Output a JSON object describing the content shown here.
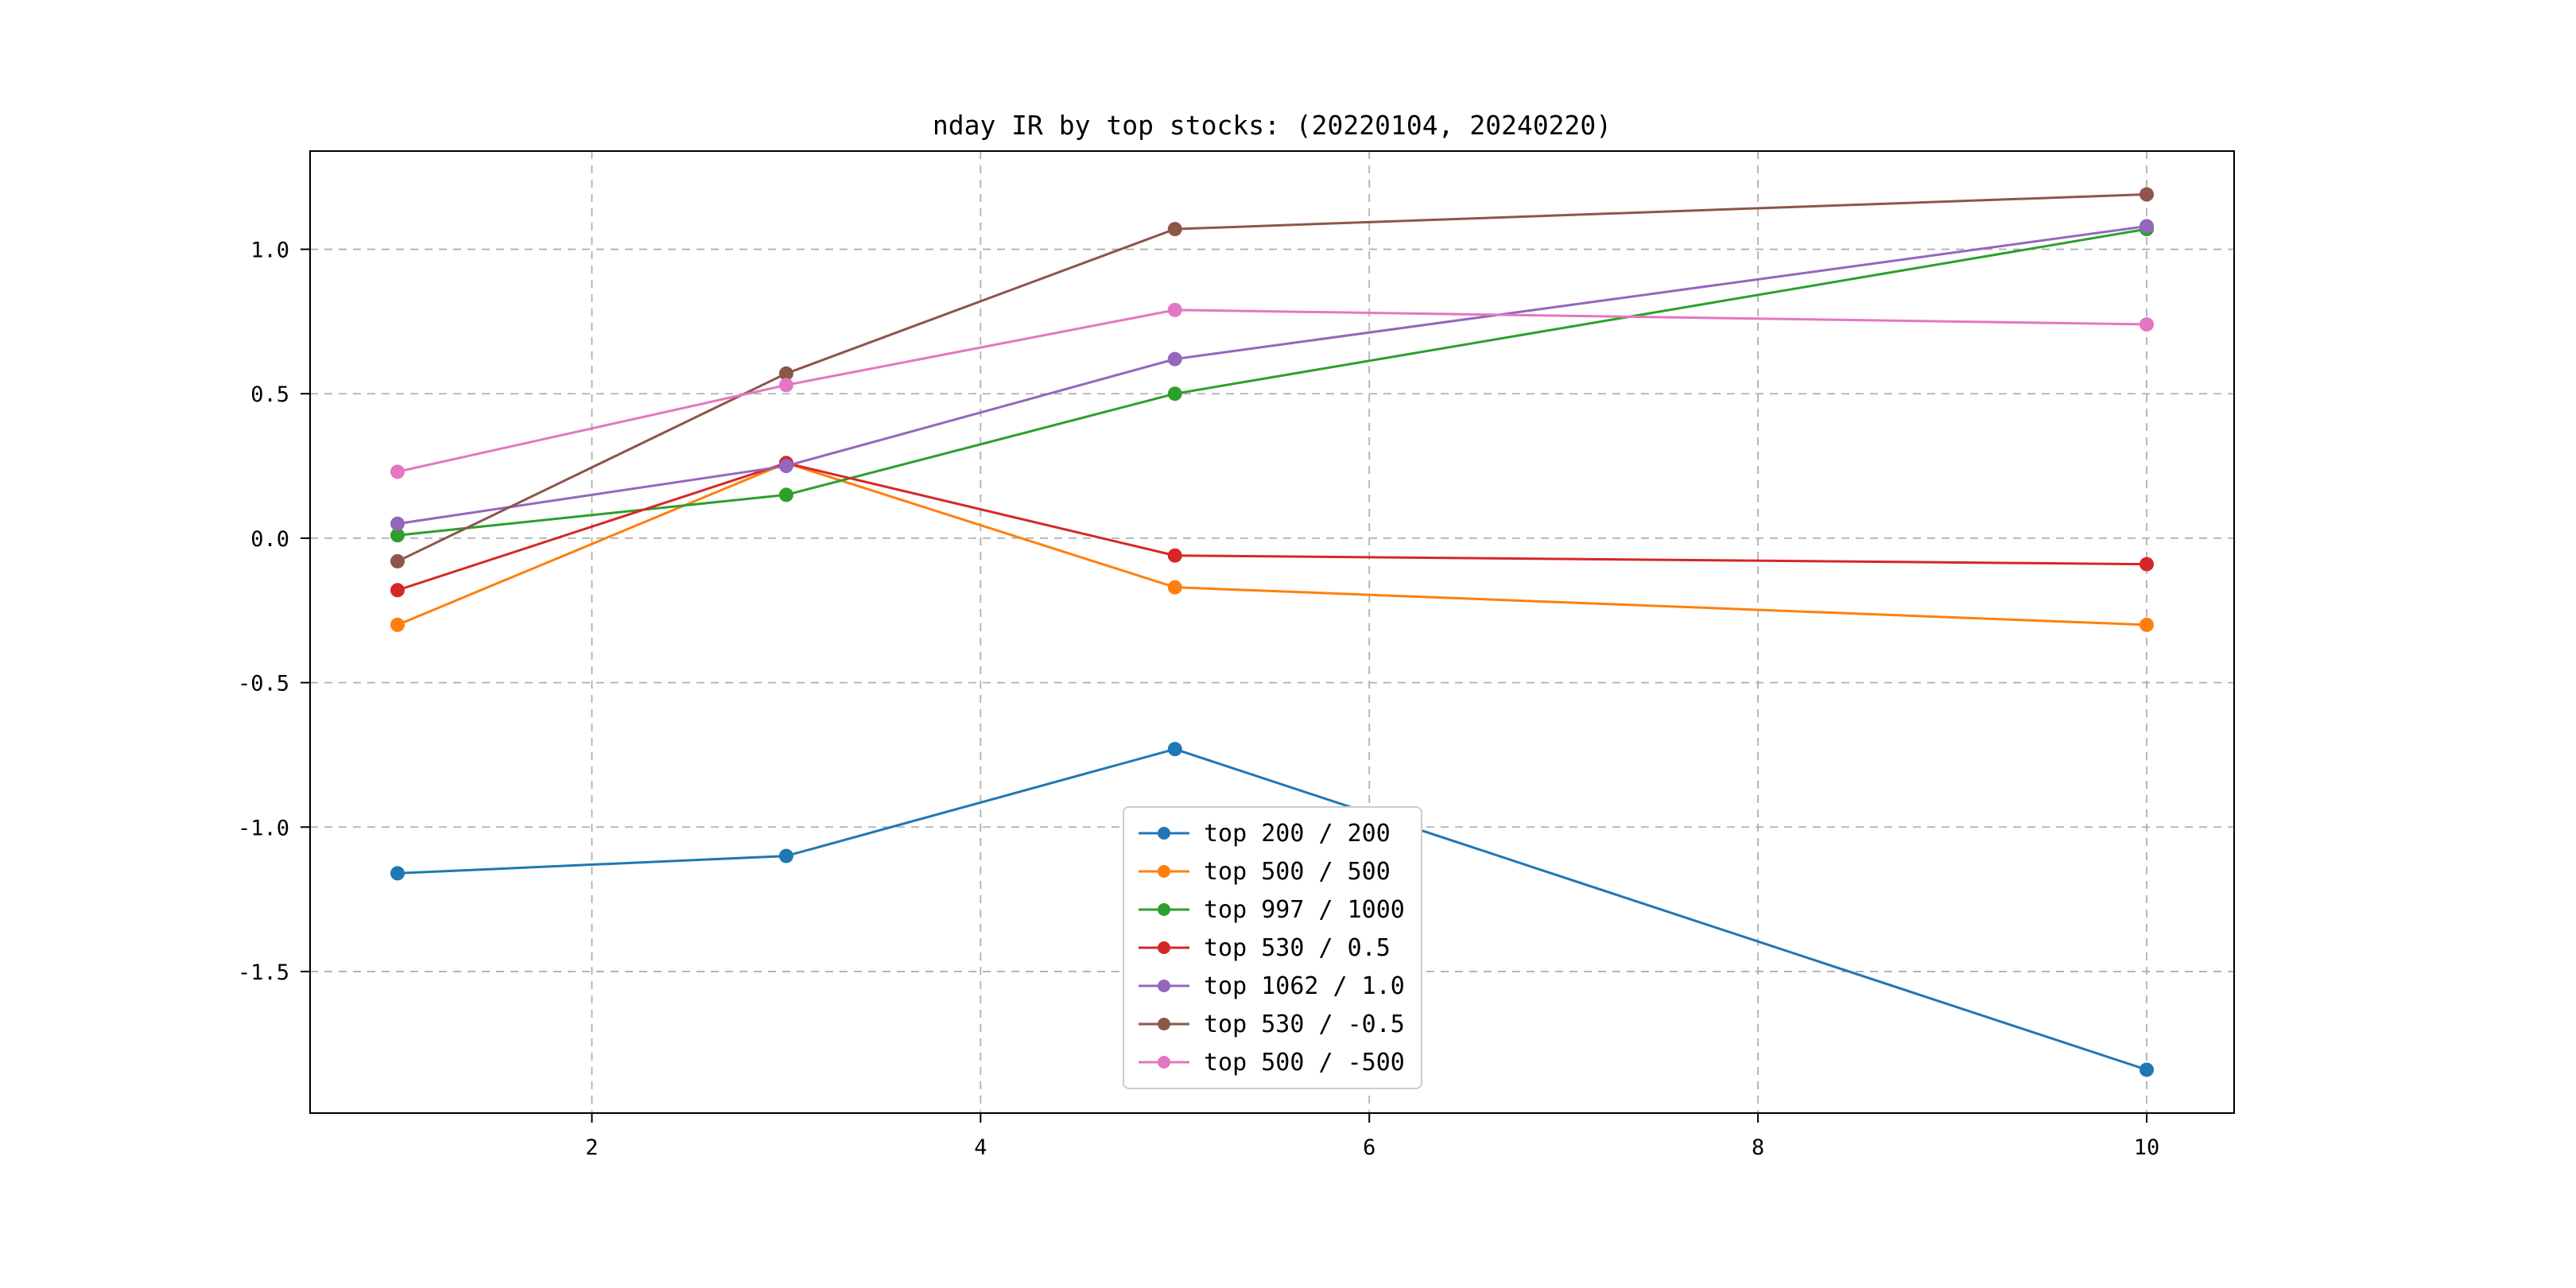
{
  "figure": {
    "background": "#ffffff",
    "axes_edge_color": "#000000",
    "grid_color": "#b0b0b0"
  },
  "chart_data": {
    "type": "line",
    "title": "nday IR by top stocks: (20220104, 20240220)",
    "xlabel": "",
    "ylabel": "",
    "x": [
      1,
      3,
      5,
      10
    ],
    "series": [
      {
        "name": "top 200 / 200",
        "color": "#1f77b4",
        "values": [
          -1.16,
          -1.1,
          -0.73,
          -1.84
        ]
      },
      {
        "name": "top 500 / 500",
        "color": "#ff7f0e",
        "values": [
          -0.3,
          0.26,
          -0.17,
          -0.3
        ]
      },
      {
        "name": "top 997 / 1000",
        "color": "#2ca02c",
        "values": [
          0.01,
          0.15,
          0.5,
          1.07
        ]
      },
      {
        "name": "top 530 / 0.5",
        "color": "#d62728",
        "values": [
          -0.18,
          0.26,
          -0.06,
          -0.09
        ]
      },
      {
        "name": "top 1062 / 1.0",
        "color": "#9467bd",
        "values": [
          0.05,
          0.25,
          0.62,
          1.08
        ]
      },
      {
        "name": "top 530 / -0.5",
        "color": "#8c564b",
        "values": [
          -0.08,
          0.57,
          1.07,
          1.19
        ]
      },
      {
        "name": "top 500 / -500",
        "color": "#e377c2",
        "values": [
          0.23,
          0.53,
          0.79,
          0.74
        ]
      }
    ],
    "xlim": [
      0.55,
      10.45
    ],
    "ylim": [
      -1.99,
      1.34
    ],
    "x_ticks": [
      2,
      4,
      6,
      8,
      10
    ],
    "y_ticks": [
      1.0,
      0.5,
      0.0,
      -0.5,
      -1.0,
      -1.5
    ],
    "grid": true,
    "grid_style": "dashed",
    "marker": "o",
    "legend_position": "lower center"
  }
}
